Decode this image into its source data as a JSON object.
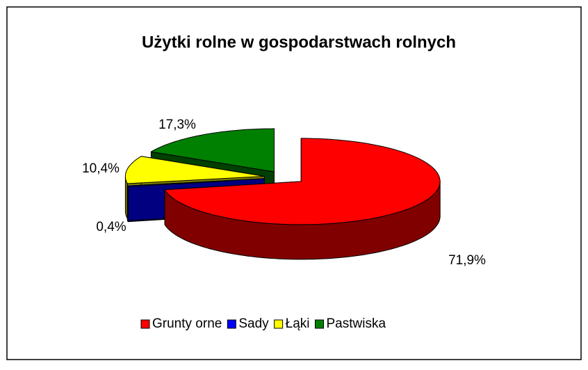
{
  "chart_data": {
    "type": "pie3d",
    "title": "Użytki rolne w gospodarstwach rolnych",
    "categories": [
      "Grunty orne",
      "Sady",
      "Łąki",
      "Pastwiska"
    ],
    "values": [
      71.9,
      0.4,
      10.4,
      17.3
    ],
    "value_labels": [
      "71,9%",
      "0,4%",
      "10,4%",
      "17,3%"
    ],
    "colors": [
      "#ff0000",
      "#0000ff",
      "#ffff00",
      "#008000"
    ],
    "legend": "bottom"
  }
}
